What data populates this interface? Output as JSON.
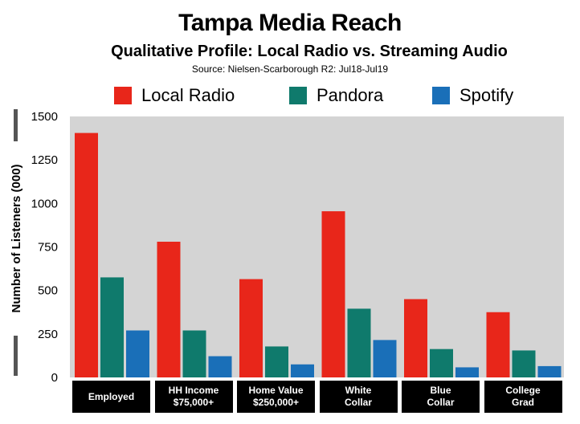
{
  "title": "Tampa Media Reach",
  "subtitle": "Qualitative Profile: Local Radio vs. Streaming Audio",
  "source": "Source: Nielsen-Scarborough R2: Jul18-Jul19",
  "colors": {
    "local_radio": "#e8261a",
    "pandora": "#0f7a6c",
    "spotify": "#1a6fb8",
    "plot_bg": "#d4d4d4"
  },
  "chart_data": {
    "type": "bar",
    "title": "Tampa Media Reach",
    "subtitle": "Qualitative Profile: Local Radio vs. Streaming Audio",
    "xlabel": "",
    "ylabel": "Number of Listeners (000)",
    "ylim": [
      0,
      1500
    ],
    "yticks": [
      "1500",
      "1250",
      "1000",
      "750",
      "500",
      "250",
      "0"
    ],
    "grid": false,
    "legend_position": "top",
    "categories": [
      "Employed",
      "HH Income\n$75,000+",
      "Home Value\n$250,000+",
      "White\nCollar",
      "Blue\nCollar",
      "College\nGrad"
    ],
    "series": [
      {
        "name": "Local Radio",
        "values": [
          1405,
          780,
          565,
          955,
          450,
          375
        ]
      },
      {
        "name": "Pandora",
        "values": [
          575,
          270,
          178,
          395,
          163,
          155
        ]
      },
      {
        "name": "Spotify",
        "values": [
          270,
          122,
          75,
          215,
          58,
          65
        ]
      }
    ]
  }
}
